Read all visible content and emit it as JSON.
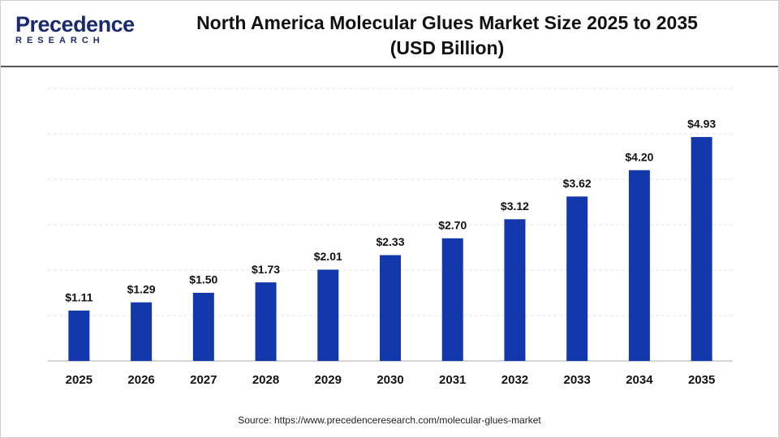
{
  "logo": {
    "name": "Precedence",
    "tagline": "RESEARCH"
  },
  "chart_data": {
    "type": "bar",
    "title": "North America Molecular Glues Market Size 2025 to 2035 (USD Billion)",
    "categories": [
      "2025",
      "2026",
      "2027",
      "2028",
      "2029",
      "2030",
      "2031",
      "2032",
      "2033",
      "2034",
      "2035"
    ],
    "values": [
      1.11,
      1.29,
      1.5,
      1.73,
      2.01,
      2.33,
      2.7,
      3.12,
      3.62,
      4.2,
      4.93
    ],
    "value_labels": [
      "$1.11",
      "$1.29",
      "$1.50",
      "$1.73",
      "$2.01",
      "$2.33",
      "$2.70",
      "$3.12",
      "$3.62",
      "$4.20",
      "$4.93"
    ],
    "color": "#1238ab",
    "ylim": [
      0,
      6
    ],
    "yticks": [
      0,
      1,
      2,
      3,
      4,
      5,
      6
    ],
    "grid": true,
    "source": "Source: https://www.precedenceresearch.com/molecular-glues-market"
  }
}
